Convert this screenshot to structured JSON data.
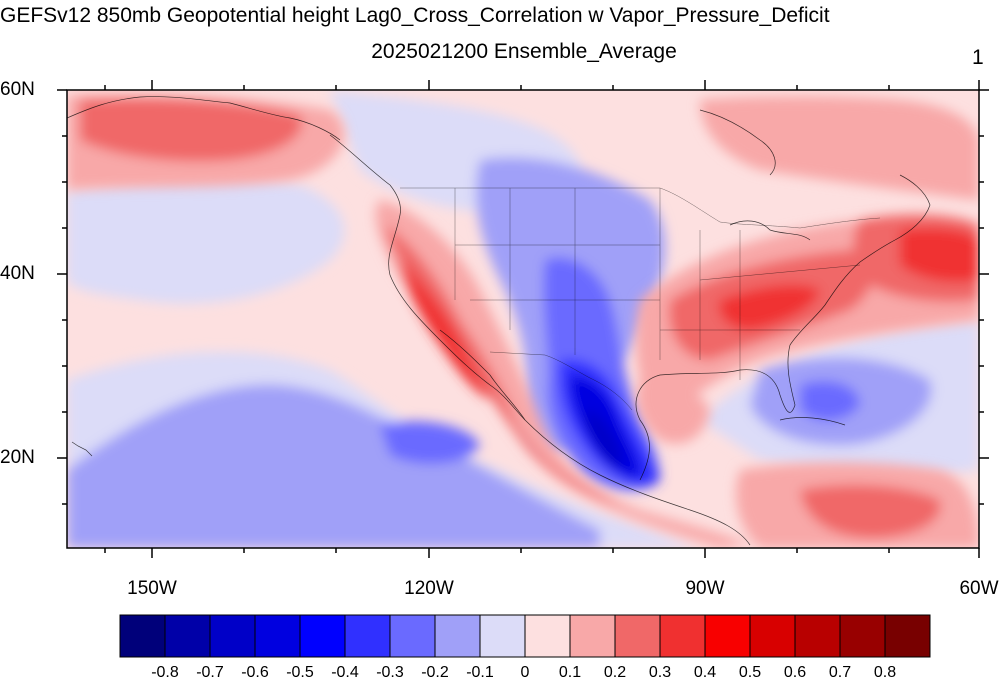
{
  "title": "GEFSv12 850mb Geopotential height Lag0_Cross_Correlation w Vapor_Pressure_Deficit",
  "subtitle": "2025021200 Ensemble_Average",
  "panel_number": "1",
  "lat_ticks": [
    {
      "label": "60N",
      "value": 60
    },
    {
      "label": "40N",
      "value": 40
    },
    {
      "label": "20N",
      "value": 20
    }
  ],
  "lon_ticks": [
    {
      "label": "150W",
      "value": -150
    },
    {
      "label": "120W",
      "value": -120
    },
    {
      "label": "90W",
      "value": -90
    },
    {
      "label": "60W",
      "value": -60
    }
  ],
  "colorbar": {
    "labels": [
      "-0.8",
      "-0.7",
      "-0.6",
      "-0.5",
      "-0.4",
      "-0.3",
      "-0.2",
      "-0.1",
      "0",
      "0.1",
      "0.2",
      "0.3",
      "0.4",
      "0.5",
      "0.6",
      "0.7",
      "0.8"
    ],
    "colors": [
      "#00007a",
      "#0000a8",
      "#0000c8",
      "#0000e0",
      "#0000ff",
      "#3030ff",
      "#6a6aff",
      "#a0a0f8",
      "#dcdcf8",
      "#fde0e0",
      "#f8a8a8",
      "#f06868",
      "#f03030",
      "#f80000",
      "#d80000",
      "#b80000",
      "#980000",
      "#780000"
    ]
  },
  "map": {
    "lon_range": [
      -160,
      -60
    ],
    "lat_range": [
      10,
      60
    ],
    "background_color": "#fde0e0"
  }
}
